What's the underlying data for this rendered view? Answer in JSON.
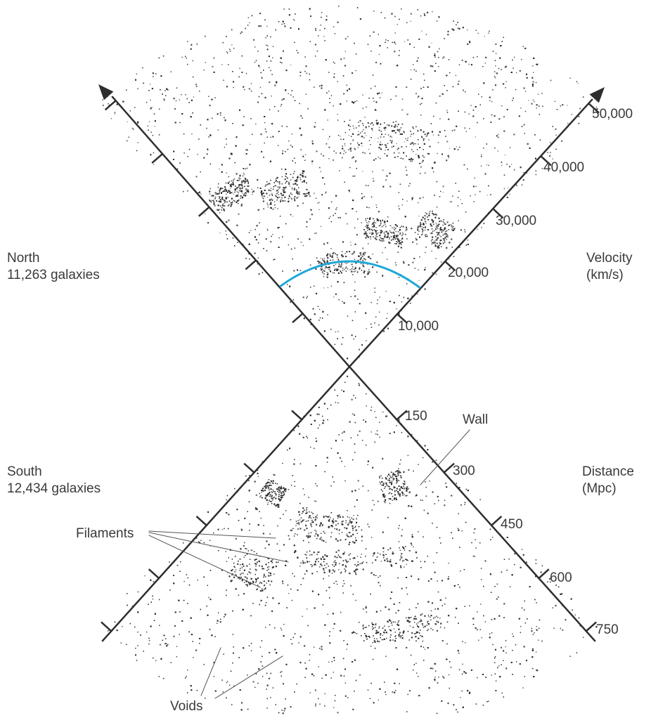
{
  "north": {
    "title": "North",
    "count": "11,263 galaxies"
  },
  "south": {
    "title": "South",
    "count": "12,434 galaxies"
  },
  "velocity_axis": {
    "title": "Velocity",
    "unit": "(km/s)",
    "ticks": [
      "10,000",
      "20,000",
      "30,000",
      "40,000",
      "50,000"
    ]
  },
  "distance_axis": {
    "title": "Distance",
    "unit": "(Mpc)",
    "ticks": [
      "150",
      "300",
      "450",
      "600",
      "750"
    ]
  },
  "annotations": {
    "wall": "Wall",
    "filaments": "Filaments",
    "voids": "Voids"
  },
  "colors": {
    "axis": "#2e2e2e",
    "galaxy": "#2a2a2a",
    "highlight_arc": "#1fa7d8",
    "text": "#3a3a3a"
  }
}
